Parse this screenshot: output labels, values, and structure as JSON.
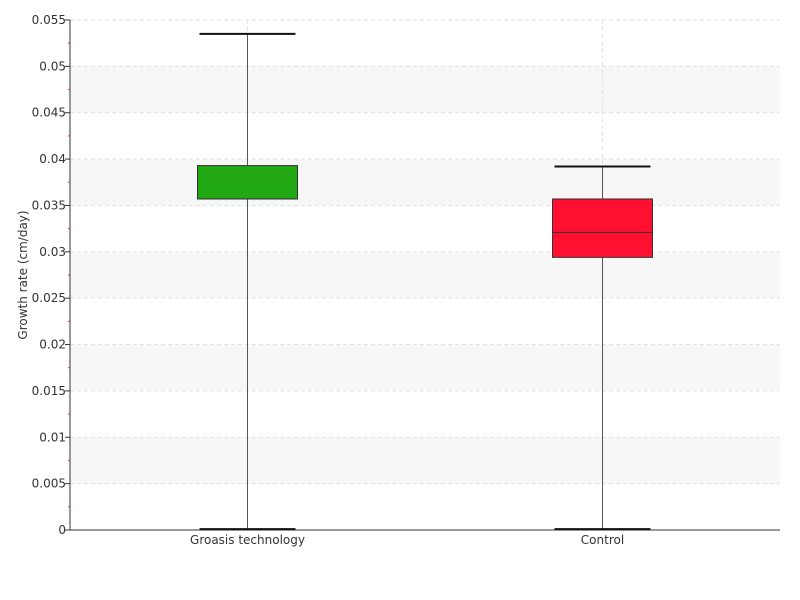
{
  "chart_data": {
    "type": "box",
    "title": "",
    "xlabel": "",
    "ylabel": "Growth rate (cm/day)",
    "ylim": [
      0,
      0.055
    ],
    "yticks": [
      "0",
      "0.005",
      "0.01",
      "0.015",
      "0.02",
      "0.025",
      "0.03",
      "0.035",
      "0.04",
      "0.045",
      "0.05",
      "0.055"
    ],
    "grid": true,
    "categories": [
      "Groasis technology",
      "Control"
    ],
    "boxes": [
      {
        "name": "Groasis technology",
        "min": 0.0001,
        "q1": 0.0357,
        "median": 0.0357,
        "q3": 0.0393,
        "max": 0.0535,
        "color": "#22a812"
      },
      {
        "name": "Control",
        "min": 0.0001,
        "q1": 0.0294,
        "median": 0.0321,
        "q3": 0.0357,
        "max": 0.0392,
        "color": "#ff1030"
      }
    ]
  }
}
